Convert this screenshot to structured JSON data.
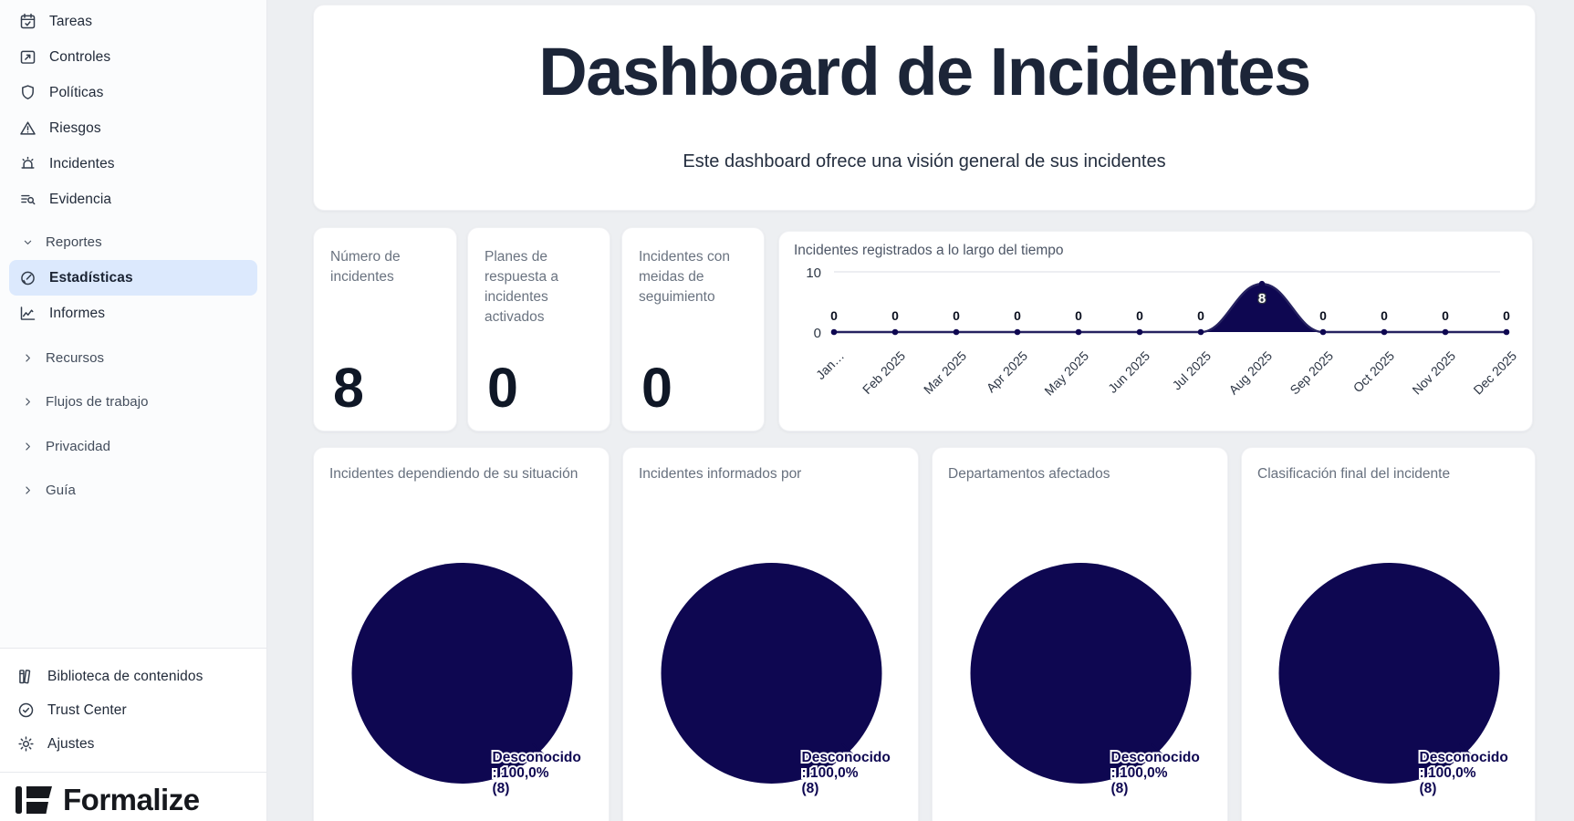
{
  "sidebar": {
    "main_items": [
      {
        "label": "Tareas",
        "icon": "calendar-check-icon"
      },
      {
        "label": "Controles",
        "icon": "frame-arrow-icon"
      },
      {
        "label": "Políticas",
        "icon": "shield-icon"
      },
      {
        "label": "Riesgos",
        "icon": "alert-triangle-icon"
      },
      {
        "label": "Incidentes",
        "icon": "siren-icon"
      },
      {
        "label": "Evidencia",
        "icon": "list-search-icon"
      }
    ],
    "reportes": {
      "label": "Reportes",
      "items": [
        {
          "label": "Estadísticas",
          "icon": "gauge-icon",
          "active": true
        },
        {
          "label": "Informes",
          "icon": "chart-line-icon",
          "active": false
        }
      ]
    },
    "collapsed_sections": [
      {
        "label": "Recursos"
      },
      {
        "label": "Flujos de trabajo"
      },
      {
        "label": "Privacidad"
      },
      {
        "label": "Guía"
      }
    ],
    "footer_items": [
      {
        "label": "Biblioteca de contenidos",
        "icon": "books-icon"
      },
      {
        "label": "Trust Center",
        "icon": "badge-check-icon"
      },
      {
        "label": "Ajustes",
        "icon": "gear-icon"
      }
    ],
    "logo_text": "Formalize"
  },
  "header": {
    "title": "Dashboard de Incidentes",
    "subtitle": "Este dashboard ofrece una visión general de sus incidentes"
  },
  "stats": [
    {
      "label": "Número de incidentes",
      "value": "8"
    },
    {
      "label": "Planes de respuesta a incidentes activados",
      "value": "0"
    },
    {
      "label": "Incidentes con meidas de seguimiento",
      "value": "0"
    }
  ],
  "colors": {
    "navy": "#0e0751",
    "line": "#262260",
    "active_item_bg": "#dce9fd",
    "page_bg": "#edeff2"
  },
  "chart_data": [
    {
      "type": "area",
      "title": "Incidentes registrados a lo largo del tiempo",
      "x": [
        "Jan…",
        "Feb 2025",
        "Mar 2025",
        "Apr 2025",
        "May 2025",
        "Jun 2025",
        "Jul 2025",
        "Aug 2025",
        "Sep 2025",
        "Oct 2025",
        "Nov 2025",
        "Dec 2025"
      ],
      "values": [
        0,
        0,
        0,
        0,
        0,
        0,
        0,
        8,
        0,
        0,
        0,
        0
      ],
      "point_labels": [
        "0",
        "0",
        "0",
        "0",
        "0",
        "0",
        "0",
        "8",
        "0",
        "0",
        "0",
        "0"
      ],
      "ylim": [
        0,
        10
      ],
      "yticks": [
        0,
        10
      ],
      "grid": "single top gridline",
      "legend": "none"
    },
    {
      "type": "pie",
      "title": "Incidentes dependiendo de su situación",
      "slices": [
        {
          "label": "Desconocido",
          "percent": "100,0%",
          "count": 8
        }
      ],
      "label_lines": [
        "Desconocido",
        ": 100,0%",
        "(8)"
      ]
    },
    {
      "type": "pie",
      "title": "Incidentes informados por",
      "slices": [
        {
          "label": "Desconocido",
          "percent": "100,0%",
          "count": 8
        }
      ],
      "label_lines": [
        "Desconocido",
        ": 100,0%",
        "(8)"
      ]
    },
    {
      "type": "pie",
      "title": "Departamentos afectados",
      "slices": [
        {
          "label": "Desconocido",
          "percent": "100,0%",
          "count": 8
        }
      ],
      "label_lines": [
        "Desconocido",
        ": 100,0%",
        "(8)"
      ]
    },
    {
      "type": "pie",
      "title": "Clasificación final del incidente",
      "slices": [
        {
          "label": "Desconocido",
          "percent": "100,0%",
          "count": 8
        }
      ],
      "label_lines": [
        "Desconocido",
        ": 100,0%",
        "(8)"
      ]
    }
  ]
}
